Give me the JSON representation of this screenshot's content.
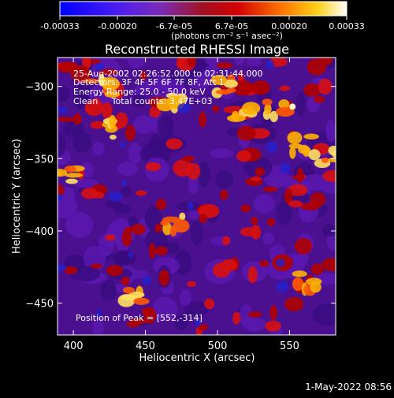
{
  "colorbar": {
    "tick_labels": [
      "-0.00033",
      "-0.00020",
      "-6.7e-05",
      "6.7e-05",
      "0.00020",
      "0.00033"
    ],
    "unit_label": "(photons cm⁻² s⁻¹ asec⁻²)",
    "range": [
      -0.00033,
      0.00033
    ],
    "colormap": "blue-purple-red-orange-yellow-white"
  },
  "title": "Reconstructed RHESSI Image",
  "annotations": [
    "25-Aug-2002 02:26:52.000 to 02:31:44.000",
    "Detectors: 3F 4F 5F 6F 7F 8F, Att 1",
    "Energy Range: 25.0 - 50.0 keV",
    "Clean     Total counts: 3.47E+03"
  ],
  "peak_label": "Position of Peak = [552,-314]",
  "footer_timestamp": "1-May-2022 08:56",
  "colors": {
    "background": "#000000",
    "text": "#ffffff",
    "low": "#0000ff",
    "mid_low": "#7a2cff",
    "mid": "#c00000",
    "high": "#ff9900",
    "max": "#ffffff"
  },
  "chart_data": {
    "type": "heatmap",
    "title": "Reconstructed RHESSI Image",
    "xlabel": "Heliocentric X (arcsec)",
    "ylabel": "Heliocentric Y (arcsec)",
    "xlim": [
      389,
      582
    ],
    "ylim": [
      -472,
      -280
    ],
    "x_ticks": [
      400,
      450,
      500,
      550
    ],
    "y_ticks": [
      -300,
      -350,
      -400,
      -450
    ],
    "x_tick_labels": [
      "400",
      "450",
      "500",
      "550"
    ],
    "y_tick_labels": [
      "−300",
      "−350",
      "−400",
      "−450"
    ],
    "peak_position": [
      552,
      -314
    ],
    "colorbar_range": [
      -0.00033,
      0.00033
    ]
  }
}
